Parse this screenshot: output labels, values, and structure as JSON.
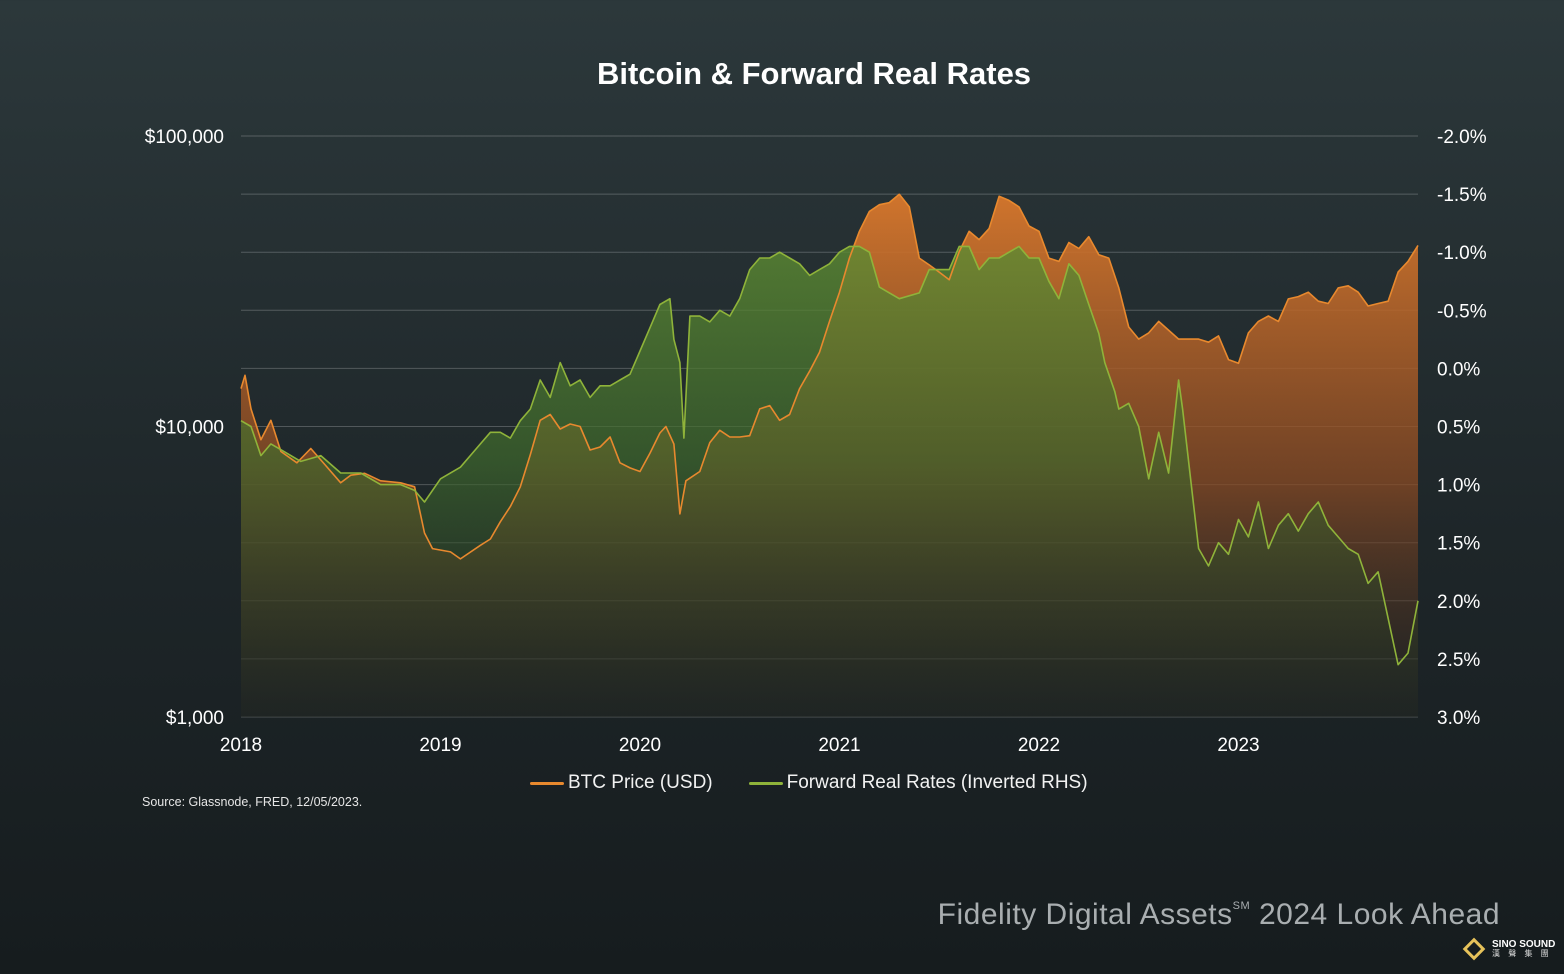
{
  "chart_data": {
    "type": "line",
    "title": "Bitcoin & Forward Real Rates",
    "x_axis": {
      "min": 2018.0,
      "max": 2023.9,
      "ticks": [
        "2018",
        "2019",
        "2020",
        "2021",
        "2022",
        "2023"
      ]
    },
    "y_left": {
      "scale": "log",
      "min": 1000,
      "max": 100000,
      "ticks": [
        "$1,000",
        "$10,000",
        "$100,000"
      ]
    },
    "y_right": {
      "inverted": true,
      "min": -2.0,
      "max": 3.0,
      "ticks": [
        "-2.0%",
        "-1.5%",
        "-1.0%",
        "-0.5%",
        "0.0%",
        "0.5%",
        "1.0%",
        "1.5%",
        "2.0%",
        "2.5%",
        "3.0%"
      ]
    },
    "grid": true,
    "legend_position": "bottom",
    "series": [
      {
        "name": "BTC Price (USD)",
        "axis": "left",
        "color": "#e8892e",
        "x": [
          2018.0,
          2018.02,
          2018.05,
          2018.1,
          2018.15,
          2018.2,
          2018.28,
          2018.35,
          2018.42,
          2018.5,
          2018.55,
          2018.62,
          2018.7,
          2018.8,
          2018.87,
          2018.92,
          2018.96,
          2019.05,
          2019.1,
          2019.2,
          2019.25,
          2019.3,
          2019.35,
          2019.4,
          2019.45,
          2019.5,
          2019.55,
          2019.6,
          2019.65,
          2019.7,
          2019.75,
          2019.8,
          2019.85,
          2019.9,
          2019.95,
          2020.0,
          2020.05,
          2020.1,
          2020.13,
          2020.17,
          2020.2,
          2020.23,
          2020.3,
          2020.35,
          2020.4,
          2020.45,
          2020.5,
          2020.55,
          2020.6,
          2020.65,
          2020.7,
          2020.75,
          2020.8,
          2020.85,
          2020.9,
          2020.95,
          2021.0,
          2021.05,
          2021.1,
          2021.15,
          2021.2,
          2021.25,
          2021.3,
          2021.35,
          2021.4,
          2021.45,
          2021.5,
          2021.55,
          2021.6,
          2021.65,
          2021.7,
          2021.75,
          2021.8,
          2021.85,
          2021.9,
          2021.95,
          2022.0,
          2022.05,
          2022.1,
          2022.15,
          2022.2,
          2022.25,
          2022.3,
          2022.35,
          2022.4,
          2022.45,
          2022.5,
          2022.55,
          2022.6,
          2022.7,
          2022.8,
          2022.85,
          2022.9,
          2022.95,
          2023.0,
          2023.05,
          2023.1,
          2023.15,
          2023.2,
          2023.25,
          2023.3,
          2023.35,
          2023.4,
          2023.45,
          2023.5,
          2023.55,
          2023.6,
          2023.65,
          2023.7,
          2023.75,
          2023.8,
          2023.85,
          2023.9
        ],
        "values": [
          13500,
          15000,
          11500,
          9000,
          10500,
          8200,
          7500,
          8400,
          7400,
          6400,
          6800,
          6900,
          6500,
          6400,
          6200,
          4300,
          3800,
          3700,
          3500,
          3900,
          4100,
          4700,
          5300,
          6200,
          8000,
          10500,
          11000,
          9800,
          10200,
          10000,
          8300,
          8500,
          9200,
          7500,
          7200,
          7000,
          8100,
          9500,
          10000,
          8700,
          5000,
          6500,
          7000,
          8800,
          9700,
          9200,
          9200,
          9300,
          11500,
          11800,
          10500,
          11000,
          13500,
          15500,
          18000,
          23000,
          29000,
          38000,
          47000,
          55000,
          58000,
          59000,
          63000,
          57000,
          38000,
          36000,
          34000,
          32000,
          40000,
          47000,
          44000,
          48000,
          62000,
          60000,
          57000,
          49000,
          47000,
          38000,
          37000,
          43000,
          41000,
          45000,
          39000,
          38000,
          30000,
          22000,
          20000,
          21000,
          23000,
          20000,
          20000,
          19500,
          20500,
          17000,
          16500,
          21000,
          23000,
          24000,
          23000,
          27500,
          28000,
          29000,
          27000,
          26500,
          30000,
          30500,
          29000,
          26000,
          26500,
          27000,
          34000,
          37000,
          42000
        ]
      },
      {
        "name": "Forward Real Rates (Inverted RHS)",
        "axis": "right",
        "color": "#8fb33a",
        "x": [
          2018.0,
          2018.05,
          2018.1,
          2018.15,
          2018.2,
          2018.3,
          2018.4,
          2018.5,
          2018.6,
          2018.7,
          2018.8,
          2018.87,
          2018.92,
          2019.0,
          2019.1,
          2019.2,
          2019.25,
          2019.3,
          2019.35,
          2019.4,
          2019.45,
          2019.5,
          2019.55,
          2019.6,
          2019.65,
          2019.7,
          2019.75,
          2019.8,
          2019.85,
          2019.9,
          2019.95,
          2020.0,
          2020.05,
          2020.1,
          2020.15,
          2020.17,
          2020.2,
          2020.22,
          2020.25,
          2020.3,
          2020.35,
          2020.4,
          2020.45,
          2020.5,
          2020.55,
          2020.6,
          2020.65,
          2020.7,
          2020.75,
          2020.8,
          2020.85,
          2020.9,
          2020.95,
          2021.0,
          2021.05,
          2021.1,
          2021.15,
          2021.2,
          2021.3,
          2021.4,
          2021.45,
          2021.5,
          2021.55,
          2021.6,
          2021.65,
          2021.7,
          2021.75,
          2021.8,
          2021.85,
          2021.9,
          2021.95,
          2022.0,
          2022.05,
          2022.1,
          2022.15,
          2022.2,
          2022.25,
          2022.3,
          2022.33,
          2022.35,
          2022.38,
          2022.4,
          2022.45,
          2022.5,
          2022.55,
          2022.6,
          2022.65,
          2022.7,
          2022.72,
          2022.75,
          2022.8,
          2022.85,
          2022.9,
          2022.95,
          2023.0,
          2023.05,
          2023.1,
          2023.15,
          2023.2,
          2023.25,
          2023.3,
          2023.35,
          2023.4,
          2023.45,
          2023.5,
          2023.55,
          2023.6,
          2023.65,
          2023.7,
          2023.75,
          2023.8,
          2023.85,
          2023.9
        ],
        "values": [
          0.45,
          0.5,
          0.75,
          0.65,
          0.7,
          0.8,
          0.75,
          0.9,
          0.9,
          1.0,
          1.0,
          1.05,
          1.15,
          0.95,
          0.85,
          0.65,
          0.55,
          0.55,
          0.6,
          0.45,
          0.35,
          0.1,
          0.25,
          -0.05,
          0.15,
          0.1,
          0.25,
          0.15,
          0.15,
          0.1,
          0.05,
          -0.15,
          -0.35,
          -0.55,
          -0.6,
          -0.25,
          -0.05,
          0.6,
          -0.45,
          -0.45,
          -0.4,
          -0.5,
          -0.45,
          -0.6,
          -0.85,
          -0.95,
          -0.95,
          -1.0,
          -0.95,
          -0.9,
          -0.8,
          -0.85,
          -0.9,
          -1.0,
          -1.05,
          -1.05,
          -1.0,
          -0.7,
          -0.6,
          -0.65,
          -0.85,
          -0.85,
          -0.85,
          -1.05,
          -1.05,
          -0.85,
          -0.95,
          -0.95,
          -1.0,
          -1.05,
          -0.95,
          -0.95,
          -0.75,
          -0.6,
          -0.9,
          -0.8,
          -0.55,
          -0.3,
          -0.05,
          0.05,
          0.2,
          0.35,
          0.3,
          0.5,
          0.95,
          0.55,
          0.9,
          0.1,
          0.35,
          0.8,
          1.55,
          1.7,
          1.5,
          1.6,
          1.3,
          1.45,
          1.15,
          1.55,
          1.35,
          1.25,
          1.4,
          1.25,
          1.15,
          1.35,
          1.45,
          1.55,
          1.6,
          1.85,
          1.75,
          2.15,
          2.55,
          2.45,
          2.0
        ]
      }
    ],
    "source_note": "Source: Glassnode, FRED, 12/05/2023."
  },
  "footer": {
    "brand_prefix": "Fidelity Digital Assets",
    "brand_mark": "SM",
    "brand_suffix": " 2024 Look Ahead"
  },
  "watermark": {
    "name": "SINO SOUND",
    "subtitle": "漢 聲 集 團",
    "accent": "#e6c25a"
  }
}
